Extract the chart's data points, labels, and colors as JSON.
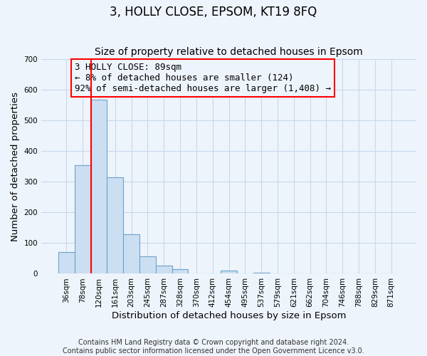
{
  "title": "3, HOLLY CLOSE, EPSOM, KT19 8FQ",
  "subtitle": "Size of property relative to detached houses in Epsom",
  "xlabel": "Distribution of detached houses by size in Epsom",
  "ylabel": "Number of detached properties",
  "bar_labels": [
    "36sqm",
    "78sqm",
    "120sqm",
    "161sqm",
    "203sqm",
    "245sqm",
    "287sqm",
    "328sqm",
    "370sqm",
    "412sqm",
    "454sqm",
    "495sqm",
    "537sqm",
    "579sqm",
    "621sqm",
    "662sqm",
    "704sqm",
    "746sqm",
    "788sqm",
    "829sqm",
    "871sqm"
  ],
  "bar_values": [
    70,
    355,
    568,
    314,
    130,
    58,
    27,
    14,
    0,
    0,
    10,
    0,
    3,
    0,
    0,
    0,
    0,
    0,
    0,
    0,
    0
  ],
  "bar_color": "#ccdff2",
  "bar_edge_color": "#6aa3cc",
  "grid_color": "#c8d8ea",
  "background_color": "#eef4fb",
  "ylim": [
    0,
    700
  ],
  "yticks": [
    0,
    100,
    200,
    300,
    400,
    500,
    600,
    700
  ],
  "annotation_line1": "3 HOLLY CLOSE: 89sqm",
  "annotation_line2": "← 8% of detached houses are smaller (124)",
  "annotation_line3": "92% of semi-detached houses are larger (1,408) →",
  "footer_line1": "Contains HM Land Registry data © Crown copyright and database right 2024.",
  "footer_line2": "Contains public sector information licensed under the Open Government Licence v3.0.",
  "title_fontsize": 12,
  "subtitle_fontsize": 10,
  "axis_label_fontsize": 9.5,
  "tick_fontsize": 7.5,
  "annotation_fontsize": 9,
  "footer_fontsize": 7
}
